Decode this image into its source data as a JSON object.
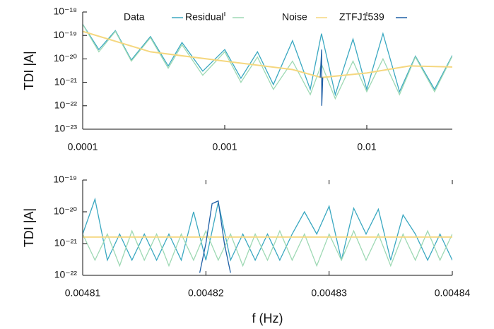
{
  "chart_data": [
    {
      "type": "line",
      "ylabel": "TDI |A|",
      "xscale": "log",
      "yscale": "log",
      "xlim": [
        0.0001,
        0.04
      ],
      "xticks": [
        0.0001,
        0.001,
        0.01
      ],
      "ylim": [
        1e-23,
        1e-18
      ],
      "yticks": [
        {
          "value": 1e-23,
          "label": "10⁻²³"
        },
        {
          "value": 1e-22,
          "label": "10⁻²²"
        },
        {
          "value": 1e-21,
          "label": "10⁻²¹"
        },
        {
          "value": 1e-20,
          "label": "10⁻²⁰"
        },
        {
          "value": 1e-19,
          "label": "10⁻¹⁹"
        },
        {
          "value": 1e-18,
          "label": "10⁻¹⁸"
        }
      ],
      "legend": "top",
      "x": [
        0.0001,
        0.00013,
        0.00017,
        0.00022,
        0.0003,
        0.0004,
        0.0005,
        0.0007,
        0.001,
        0.0013,
        0.0017,
        0.0022,
        0.003,
        0.004,
        0.0048,
        0.006,
        0.008,
        0.01,
        0.013,
        0.017,
        0.022,
        0.03,
        0.04
      ],
      "series": [
        {
          "name": "Data",
          "color": "#3aa8c1",
          "values": [
            3e-19,
            2.5e-20,
            1.6e-19,
            9e-21,
            9e-20,
            5e-21,
            5e-20,
            3e-21,
            2.5e-20,
            1.5e-21,
            2e-20,
            8e-22,
            6e-20,
            5e-22,
            1.2e-19,
            3e-22,
            7e-20,
            5e-22,
            1.2e-19,
            4e-22,
            1.3e-20,
            5e-22,
            1.4e-20
          ]
        },
        {
          "name": "Residual",
          "color": "#9ed9b4",
          "values": [
            3e-19,
            2e-20,
            1.5e-19,
            8e-21,
            8e-20,
            4e-21,
            4e-20,
            2e-21,
            2e-20,
            1e-21,
            1.2e-20,
            5e-22,
            8e-21,
            3e-22,
            6e-21,
            2e-22,
            8e-21,
            4e-22,
            1e-20,
            3e-22,
            1.2e-20,
            4e-22,
            1.3e-20
          ]
        },
        {
          "name": "Noise",
          "color": "#f5d77f",
          "x": [
            0.0001,
            0.0003,
            0.001,
            0.003,
            0.0048,
            0.01,
            0.02,
            0.04
          ],
          "values": [
            1.5e-19,
            2e-20,
            8e-21,
            3.5e-21,
            1.6e-21,
            2.5e-21,
            5e-21,
            4.5e-21
          ]
        },
        {
          "name": "ZTFJ1539",
          "color": "#1f5fa6",
          "x": [
            0.0047,
            0.00481,
            0.00482,
            0.0049
          ],
          "values": [
            1.6e-21,
            2.5e-20,
            1e-22,
            1.6e-21
          ]
        }
      ]
    },
    {
      "type": "line",
      "ylabel": "TDI |A|",
      "xlabel": "f (Hz)",
      "xscale": "linear",
      "yscale": "log",
      "xlim": [
        0.00481,
        0.00484
      ],
      "xticks": [
        0.00481,
        0.00482,
        0.00483,
        0.00484
      ],
      "ylim": [
        1e-22,
        1e-19
      ],
      "yticks": [
        {
          "value": 1e-22,
          "label": "10⁻²²"
        },
        {
          "value": 1e-21,
          "label": "10⁻²¹"
        },
        {
          "value": 1e-20,
          "label": "10⁻²⁰"
        },
        {
          "value": 1e-19,
          "label": "10⁻¹⁹"
        }
      ],
      "x": [
        0.00481,
        0.004811,
        0.004812,
        0.004813,
        0.004814,
        0.004815,
        0.004816,
        0.004817,
        0.004818,
        0.004819,
        0.00482,
        0.004821,
        0.004822,
        0.004823,
        0.004824,
        0.004825,
        0.004826,
        0.004827,
        0.004828,
        0.004829,
        0.00483,
        0.004831,
        0.004832,
        0.004833,
        0.004834,
        0.004835,
        0.004836,
        0.004837,
        0.004838,
        0.004839,
        0.00484
      ],
      "series": [
        {
          "name": "Data",
          "color": "#3aa8c1",
          "values": [
            2e-21,
            2.5e-20,
            3e-22,
            2e-21,
            3e-22,
            2e-21,
            3e-22,
            2e-21,
            3e-22,
            1e-20,
            3e-22,
            2e-20,
            3e-22,
            2e-21,
            3e-22,
            2e-21,
            3e-22,
            2e-21,
            1e-20,
            2e-21,
            1.5e-20,
            3e-22,
            1.3e-20,
            2e-21,
            1.2e-20,
            3e-22,
            8e-21,
            2e-21,
            3e-22,
            2e-21,
            3e-22
          ]
        },
        {
          "name": "Residual",
          "color": "#9ed9b4",
          "values": [
            2e-21,
            3e-22,
            2e-21,
            2e-22,
            2.5e-21,
            3e-22,
            2e-21,
            2e-22,
            2e-21,
            3e-22,
            2.5e-21,
            3e-22,
            2e-21,
            2e-22,
            2e-21,
            3e-22,
            2.5e-21,
            3e-22,
            2e-21,
            2e-22,
            2e-21,
            3e-22,
            2.5e-21,
            3e-22,
            2e-21,
            2e-22,
            2e-21,
            3e-22,
            2.5e-21,
            3e-22,
            2e-21
          ]
        },
        {
          "name": "Noise",
          "color": "#f5d77f",
          "x": [
            0.00481,
            0.00484
          ],
          "values": [
            1.6e-21,
            1.6e-21
          ]
        },
        {
          "name": "ZTFJ1539",
          "color": "#1f5fa6",
          "x": [
            0.0048195,
            0.00482,
            0.0048205,
            0.004821,
            0.0048215,
            0.004822
          ],
          "values": [
            1.2e-22,
            1e-21,
            1.8e-20,
            2.2e-20,
            1e-21,
            1.2e-22
          ]
        }
      ]
    }
  ]
}
